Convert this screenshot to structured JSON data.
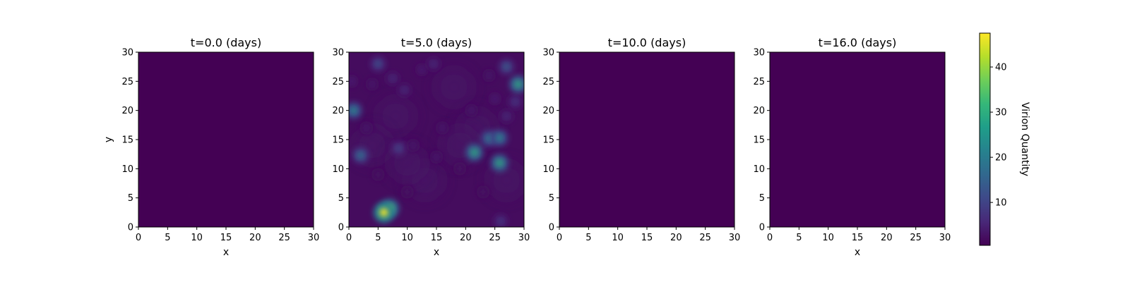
{
  "chart_data": [
    {
      "type": "heatmap",
      "title": "t=0.0 (days)",
      "xlabel": "x",
      "ylabel": "y",
      "xlim": [
        0,
        30
      ],
      "ylim": [
        0,
        30
      ],
      "xticks": [
        "0",
        "5",
        "10",
        "15",
        "20",
        "25",
        "30"
      ],
      "yticks": [
        "0",
        "5",
        "10",
        "15",
        "20",
        "25",
        "30"
      ],
      "background_value": 0.5,
      "hotspots": [],
      "plumes": []
    },
    {
      "type": "heatmap",
      "title": "t=5.0 (days)",
      "xlabel": "x",
      "ylabel": "",
      "xlim": [
        0,
        30
      ],
      "ylim": [
        0,
        30
      ],
      "xticks": [
        "0",
        "5",
        "10",
        "15",
        "20",
        "25",
        "30"
      ],
      "yticks": [
        "0",
        "5",
        "10",
        "15",
        "20",
        "25",
        "30"
      ],
      "background_value": 2,
      "hotspots": [
        {
          "x": 6,
          "y": 2.5,
          "value": 47
        },
        {
          "x": 7,
          "y": 3.2,
          "value": 36
        },
        {
          "x": 21.5,
          "y": 12.8,
          "value": 30
        },
        {
          "x": 25.8,
          "y": 11,
          "value": 30
        },
        {
          "x": 29,
          "y": 24.5,
          "value": 30
        },
        {
          "x": 0.8,
          "y": 20,
          "value": 24
        },
        {
          "x": 24,
          "y": 15.2,
          "value": 22
        },
        {
          "x": 25.8,
          "y": 15.3,
          "value": 24
        },
        {
          "x": 2,
          "y": 12.3,
          "value": 20
        },
        {
          "x": 27,
          "y": 27.5,
          "value": 16
        },
        {
          "x": 5,
          "y": 28,
          "value": 14
        },
        {
          "x": 8.5,
          "y": 13.5,
          "value": 12
        },
        {
          "x": 14.5,
          "y": 28,
          "value": 8
        },
        {
          "x": 26,
          "y": 1,
          "value": 10
        },
        {
          "x": 7.5,
          "y": 25.5,
          "value": 8
        },
        {
          "x": 9.5,
          "y": 23.5,
          "value": 8
        },
        {
          "x": 28.5,
          "y": 21.5,
          "value": 10
        },
        {
          "x": 27,
          "y": 19,
          "value": 8
        },
        {
          "x": 25,
          "y": 22,
          "value": 6
        },
        {
          "x": 12.5,
          "y": 27,
          "value": 6
        },
        {
          "x": 16,
          "y": 17,
          "value": 5
        },
        {
          "x": 15,
          "y": 12,
          "value": 5
        },
        {
          "x": 11,
          "y": 14,
          "value": 5
        },
        {
          "x": 4,
          "y": 24.5,
          "value": 5
        },
        {
          "x": 5,
          "y": 9,
          "value": 4
        },
        {
          "x": 3,
          "y": 17,
          "value": 5
        },
        {
          "x": 21,
          "y": 20,
          "value": 5
        },
        {
          "x": 23,
          "y": 6,
          "value": 4
        },
        {
          "x": 10,
          "y": 6,
          "value": 4
        },
        {
          "x": 19,
          "y": 10,
          "value": 4
        },
        {
          "x": 24,
          "y": 26,
          "value": 5
        },
        {
          "x": 0.5,
          "y": 25,
          "value": 6
        }
      ],
      "plumes": [
        {
          "x": 22,
          "y": 17,
          "value": 3
        },
        {
          "x": 8,
          "y": 19,
          "value": 3
        },
        {
          "x": 18,
          "y": 24,
          "value": 3
        },
        {
          "x": 13,
          "y": 8,
          "value": 3
        },
        {
          "x": 4,
          "y": 14,
          "value": 3
        },
        {
          "x": 27,
          "y": 8,
          "value": 3
        },
        {
          "x": 19,
          "y": 14,
          "value": 3
        },
        {
          "x": 10,
          "y": 11,
          "value": 3
        }
      ]
    },
    {
      "type": "heatmap",
      "title": "t=10.0 (days)",
      "xlabel": "",
      "ylabel": "",
      "xlim": [
        0,
        30
      ],
      "ylim": [
        0,
        30
      ],
      "xticks": [
        "0",
        "5",
        "10",
        "15",
        "20",
        "25",
        "30"
      ],
      "yticks": [
        "0",
        "5",
        "10",
        "15",
        "20",
        "25",
        "30"
      ],
      "background_value": 0.5,
      "hotspots": [],
      "plumes": []
    },
    {
      "type": "heatmap",
      "title": "t=16.0 (days)",
      "xlabel": "x",
      "ylabel": "",
      "xlim": [
        0,
        30
      ],
      "ylim": [
        0,
        30
      ],
      "xticks": [
        "0",
        "5",
        "10",
        "15",
        "20",
        "25",
        "30"
      ],
      "yticks": [
        "0",
        "5",
        "10",
        "15",
        "20",
        "25",
        "30"
      ],
      "background_value": 0.5,
      "hotspots": [],
      "plumes": []
    }
  ],
  "colorbar": {
    "label": "Virion Quantity",
    "range": [
      0.5,
      47.5
    ],
    "ticks": [
      10,
      20,
      30,
      40
    ],
    "tick_labels": [
      "10",
      "20",
      "30",
      "40"
    ],
    "colormap": "viridis",
    "colors": [
      "#440154",
      "#482878",
      "#3e4989",
      "#31688e",
      "#26828e",
      "#1f9e89",
      "#35b779",
      "#6ece58",
      "#b5de2b",
      "#fde725"
    ]
  }
}
